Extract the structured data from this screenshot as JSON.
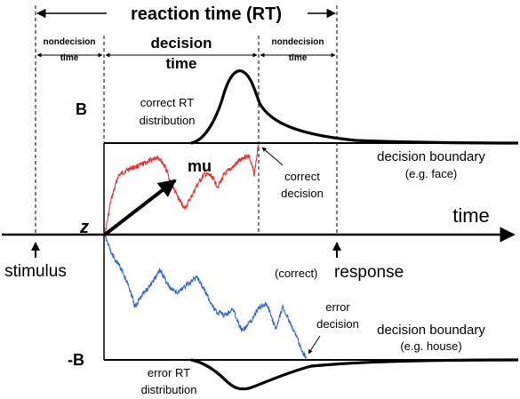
{
  "labels": {
    "rt": "reaction time (RT)",
    "nondecision1_a": "nondecision",
    "nondecision1_b": "time",
    "decision_a": "decision",
    "decision_b": "time",
    "nondecision2_a": "nondecision",
    "nondecision2_b": "time",
    "b_upper": "B",
    "b_lower": "-B",
    "correct_dist_a": "correct RT",
    "correct_dist_b": "distribution",
    "error_dist_a": "error RT",
    "error_dist_b": "distribution",
    "mu": "mu",
    "z": "z",
    "time": "time",
    "stimulus": "stimulus",
    "correct_paren": "(correct)",
    "response": "response",
    "correct_decision_a": "correct",
    "correct_decision_b": "decision",
    "error_decision_a": "error",
    "error_decision_b": "decision",
    "boundary_upper_a": "decision boundary",
    "boundary_upper_b": "(e.g. face)",
    "boundary_lower_a": "decision boundary",
    "boundary_lower_b": "(e.g. house)"
  },
  "colors": {
    "correct_path": "#e8292b",
    "error_path": "#2f63d6",
    "ink": "#000000"
  }
}
